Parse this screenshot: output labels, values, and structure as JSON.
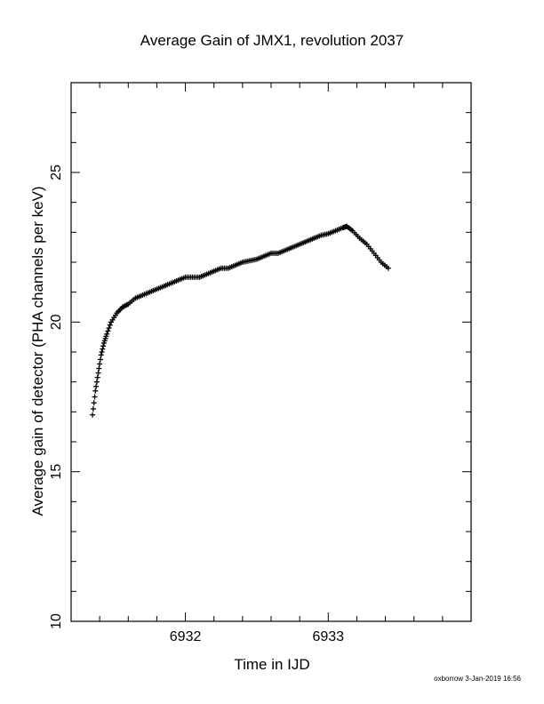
{
  "chart_data": {
    "type": "scatter",
    "title": "Average Gain of JMX1, revolution 2037",
    "xlabel": "Time in IJD",
    "ylabel": "Average gain of detector (PHA channels per keV)",
    "xlim": [
      6931.2,
      6934.0
    ],
    "ylim": [
      10,
      28
    ],
    "xticks": [
      6932,
      6933
    ],
    "yticks": [
      10,
      15,
      20,
      25
    ],
    "marker": "+",
    "color": "#000000",
    "series": [
      {
        "x": [
          6931.35,
          6931.37,
          6931.39,
          6931.41,
          6931.43,
          6931.45,
          6931.48,
          6931.52,
          6931.56,
          6931.6,
          6931.65,
          6931.7,
          6931.75,
          6931.8,
          6931.85,
          6931.9,
          6931.95,
          6932.0,
          6932.05,
          6932.1,
          6932.15,
          6932.2,
          6932.25,
          6932.3,
          6932.35,
          6932.4,
          6932.45,
          6932.5,
          6932.55,
          6932.6,
          6932.65,
          6932.7,
          6932.75,
          6932.8,
          6932.85,
          6932.9,
          6932.95,
          6933.0,
          6933.05,
          6933.1,
          6933.13,
          6933.17,
          6933.22,
          6933.27,
          6933.32,
          6933.37,
          6933.42
        ],
        "y": [
          16.9,
          17.7,
          18.3,
          18.9,
          19.3,
          19.6,
          20.0,
          20.3,
          20.5,
          20.6,
          20.8,
          20.9,
          21.0,
          21.1,
          21.2,
          21.3,
          21.4,
          21.5,
          21.5,
          21.5,
          21.6,
          21.7,
          21.8,
          21.8,
          21.9,
          22.0,
          22.05,
          22.1,
          22.2,
          22.3,
          22.3,
          22.4,
          22.5,
          22.6,
          22.7,
          22.8,
          22.9,
          22.95,
          23.05,
          23.15,
          23.2,
          23.05,
          22.8,
          22.6,
          22.3,
          22.0,
          21.8
        ]
      }
    ]
  },
  "footer": "oxborrow 3-Jan-2019 16:56"
}
